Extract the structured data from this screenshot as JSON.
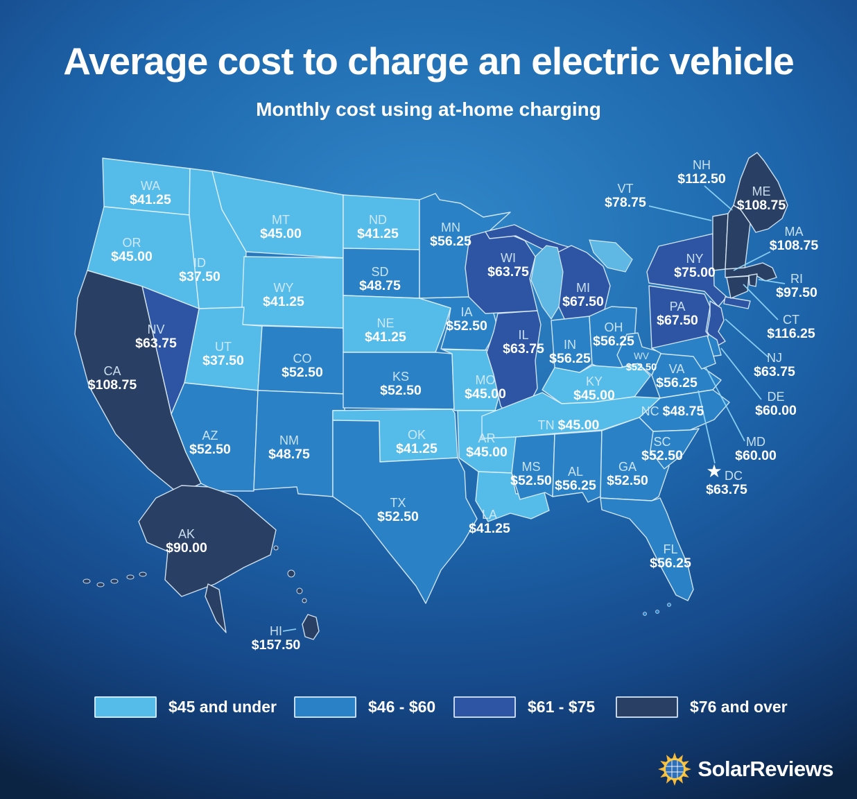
{
  "title": "Average cost to charge an electric vehicle",
  "subtitle": "Monthly cost using at-home charging",
  "logo_text": "SolarReviews",
  "chart_data": {
    "type": "choropleth",
    "title": "Average cost to charge an electric vehicle",
    "subtitle": "Monthly cost using at-home charging",
    "unit": "USD per month",
    "legend_position": "bottom",
    "bins": [
      {
        "label": "$45 and under",
        "color": "#55bbe9"
      },
      {
        "label": "$46 - $60",
        "color": "#2a81c6"
      },
      {
        "label": "$61 - $75",
        "color": "#2d55a4"
      },
      {
        "label": "$76 and over",
        "color": "#293f63"
      }
    ],
    "states": [
      {
        "abbr": "WA",
        "value": "$41.25",
        "bin": 0
      },
      {
        "abbr": "OR",
        "value": "$45.00",
        "bin": 0
      },
      {
        "abbr": "ID",
        "value": "$37.50",
        "bin": 0
      },
      {
        "abbr": "MT",
        "value": "$45.00",
        "bin": 0
      },
      {
        "abbr": "WY",
        "value": "$41.25",
        "bin": 0
      },
      {
        "abbr": "NV",
        "value": "$63.75",
        "bin": 2
      },
      {
        "abbr": "UT",
        "value": "$37.50",
        "bin": 0
      },
      {
        "abbr": "CA",
        "value": "$108.75",
        "bin": 3
      },
      {
        "abbr": "AZ",
        "value": "$52.50",
        "bin": 1
      },
      {
        "abbr": "NM",
        "value": "$48.75",
        "bin": 1
      },
      {
        "abbr": "CO",
        "value": "$52.50",
        "bin": 1
      },
      {
        "abbr": "ND",
        "value": "$41.25",
        "bin": 0
      },
      {
        "abbr": "SD",
        "value": "$48.75",
        "bin": 1
      },
      {
        "abbr": "NE",
        "value": "$41.25",
        "bin": 0
      },
      {
        "abbr": "KS",
        "value": "$52.50",
        "bin": 1
      },
      {
        "abbr": "OK",
        "value": "$41.25",
        "bin": 0
      },
      {
        "abbr": "TX",
        "value": "$52.50",
        "bin": 1
      },
      {
        "abbr": "MN",
        "value": "$56.25",
        "bin": 1
      },
      {
        "abbr": "IA",
        "value": "$52.50",
        "bin": 1
      },
      {
        "abbr": "MO",
        "value": "$45.00",
        "bin": 0
      },
      {
        "abbr": "AR",
        "value": "$45.00",
        "bin": 0
      },
      {
        "abbr": "LA",
        "value": "$41.25",
        "bin": 0
      },
      {
        "abbr": "WI",
        "value": "$63.75",
        "bin": 2
      },
      {
        "abbr": "IL",
        "value": "$63.75",
        "bin": 2
      },
      {
        "abbr": "MI",
        "value": "$67.50",
        "bin": 2
      },
      {
        "abbr": "IN",
        "value": "$56.25",
        "bin": 1
      },
      {
        "abbr": "OH",
        "value": "$56.25",
        "bin": 1
      },
      {
        "abbr": "KY",
        "value": "$45.00",
        "bin": 0
      },
      {
        "abbr": "TN",
        "value": "$45.00",
        "bin": 0
      },
      {
        "abbr": "MS",
        "value": "$52.50",
        "bin": 1
      },
      {
        "abbr": "AL",
        "value": "$56.25",
        "bin": 1
      },
      {
        "abbr": "GA",
        "value": "$52.50",
        "bin": 1
      },
      {
        "abbr": "SC",
        "value": "$52.50",
        "bin": 1
      },
      {
        "abbr": "NC",
        "value": "$48.75",
        "bin": 1
      },
      {
        "abbr": "FL",
        "value": "$56.25",
        "bin": 1
      },
      {
        "abbr": "VA",
        "value": "$56.25",
        "bin": 1
      },
      {
        "abbr": "WV",
        "value": "$52.50",
        "bin": 1
      },
      {
        "abbr": "PA",
        "value": "$67.50",
        "bin": 2
      },
      {
        "abbr": "NY",
        "value": "$75.00",
        "bin": 2
      },
      {
        "abbr": "NJ",
        "value": "$63.75",
        "bin": 2
      },
      {
        "abbr": "DE",
        "value": "$60.00",
        "bin": 1
      },
      {
        "abbr": "MD",
        "value": "$60.00",
        "bin": 1
      },
      {
        "abbr": "VT",
        "value": "$78.75",
        "bin": 3
      },
      {
        "abbr": "NH",
        "value": "$112.50",
        "bin": 3
      },
      {
        "abbr": "ME",
        "value": "$108.75",
        "bin": 3
      },
      {
        "abbr": "MA",
        "value": "$108.75",
        "bin": 3
      },
      {
        "abbr": "RI",
        "value": "$97.50",
        "bin": 3
      },
      {
        "abbr": "CT",
        "value": "$116.25",
        "bin": 3
      },
      {
        "abbr": "DC",
        "value": "$63.75",
        "bin": 2
      },
      {
        "abbr": "AK",
        "value": "$90.00",
        "bin": 3
      },
      {
        "abbr": "HI",
        "value": "$157.50",
        "bin": 3
      }
    ]
  }
}
